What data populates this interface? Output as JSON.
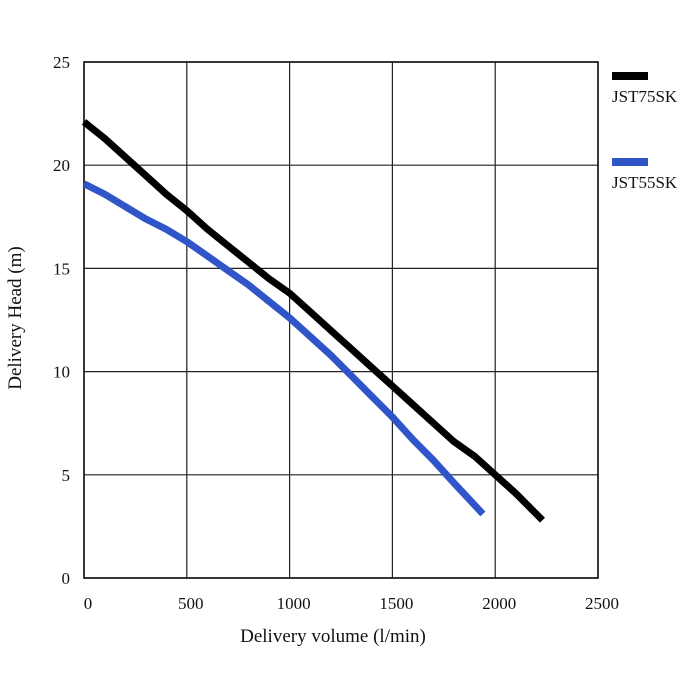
{
  "chart_data": {
    "type": "line",
    "xlabel": "Delivery volume (l/min)",
    "ylabel": "Delivery Head (m)",
    "xlim": [
      0,
      2500
    ],
    "ylim": [
      0,
      25
    ],
    "x_ticks": [
      "0",
      "500",
      "1000",
      "1500",
      "2000",
      "2500"
    ],
    "y_ticks": [
      "0",
      "5",
      "10",
      "15",
      "20",
      "25"
    ],
    "grid": true,
    "legend_position": "right",
    "series": [
      {
        "name": "JST75SK",
        "color": "#000000",
        "points": [
          [
            0,
            22.1
          ],
          [
            100,
            21.3
          ],
          [
            200,
            20.4
          ],
          [
            300,
            19.5
          ],
          [
            400,
            18.6
          ],
          [
            500,
            17.8
          ],
          [
            600,
            16.9
          ],
          [
            700,
            16.1
          ],
          [
            800,
            15.3
          ],
          [
            900,
            14.5
          ],
          [
            1000,
            13.8
          ],
          [
            1100,
            12.9
          ],
          [
            1200,
            12.0
          ],
          [
            1300,
            11.1
          ],
          [
            1400,
            10.2
          ],
          [
            1500,
            9.3
          ],
          [
            1600,
            8.4
          ],
          [
            1700,
            7.5
          ],
          [
            1800,
            6.6
          ],
          [
            1900,
            5.9
          ],
          [
            2000,
            5.0
          ],
          [
            2100,
            4.1
          ],
          [
            2230,
            2.8
          ]
        ]
      },
      {
        "name": "JST55SK",
        "color": "#2f55c8",
        "points": [
          [
            0,
            19.1
          ],
          [
            100,
            18.6
          ],
          [
            200,
            18.0
          ],
          [
            300,
            17.4
          ],
          [
            400,
            16.9
          ],
          [
            500,
            16.3
          ],
          [
            600,
            15.6
          ],
          [
            700,
            14.9
          ],
          [
            800,
            14.2
          ],
          [
            900,
            13.4
          ],
          [
            1000,
            12.6
          ],
          [
            1100,
            11.7
          ],
          [
            1200,
            10.8
          ],
          [
            1300,
            9.8
          ],
          [
            1400,
            8.8
          ],
          [
            1500,
            7.8
          ],
          [
            1600,
            6.7
          ],
          [
            1700,
            5.7
          ],
          [
            1800,
            4.6
          ],
          [
            1940,
            3.1
          ]
        ]
      }
    ]
  }
}
